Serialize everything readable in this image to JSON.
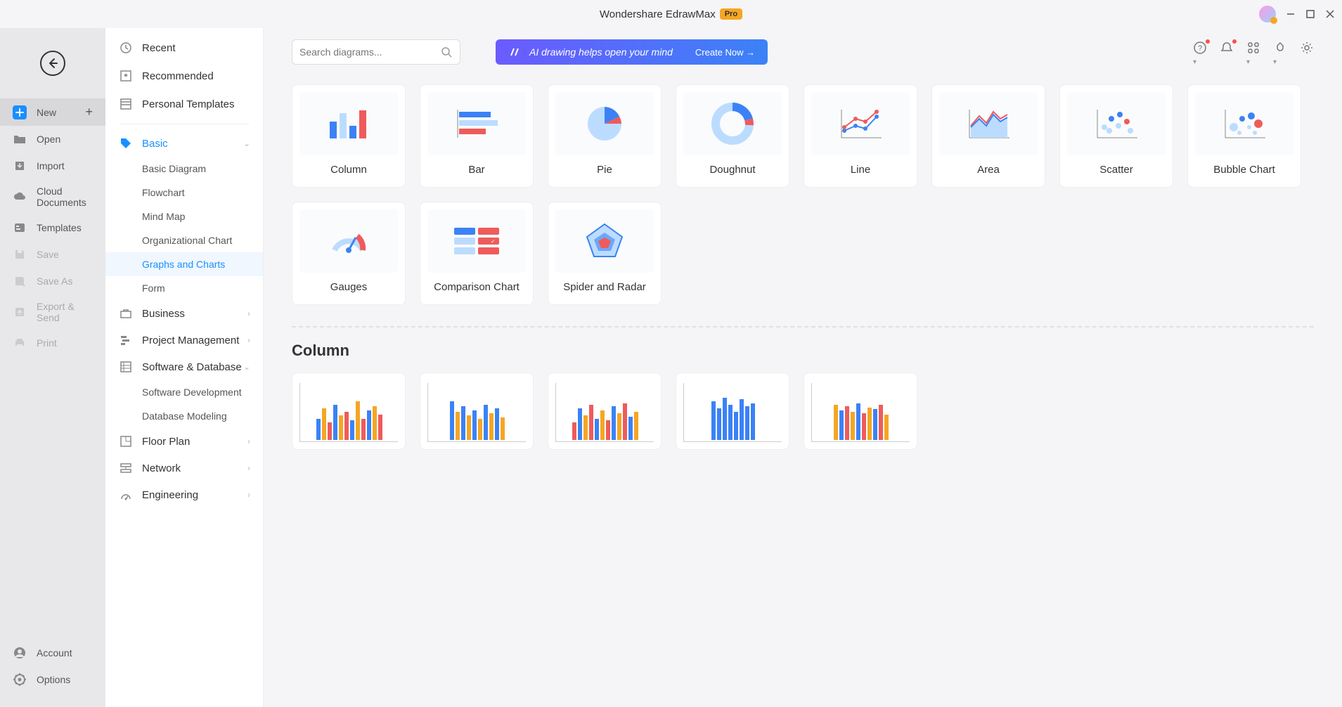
{
  "titlebar": {
    "title": "Wondershare EdrawMax",
    "badge": "Pro"
  },
  "sidebar1": {
    "items": [
      {
        "label": "New",
        "active": true,
        "plus": true
      },
      {
        "label": "Open"
      },
      {
        "label": "Import"
      },
      {
        "label": "Cloud Documents"
      },
      {
        "label": "Templates"
      },
      {
        "label": "Save",
        "disabled": true
      },
      {
        "label": "Save As",
        "disabled": true
      },
      {
        "label": "Export & Send",
        "disabled": true
      },
      {
        "label": "Print",
        "disabled": true
      }
    ],
    "bottom": [
      {
        "label": "Account"
      },
      {
        "label": "Options"
      }
    ]
  },
  "sidebar2": {
    "top": [
      {
        "label": "Recent"
      },
      {
        "label": "Recommended"
      },
      {
        "label": "Personal Templates"
      }
    ],
    "categories": [
      {
        "label": "Basic",
        "selected": true,
        "expanded": true,
        "children": [
          "Basic Diagram",
          "Flowchart",
          "Mind Map",
          "Organizational Chart",
          "Graphs and Charts",
          "Form"
        ],
        "selected_child": 4
      },
      {
        "label": "Business"
      },
      {
        "label": "Project Management"
      },
      {
        "label": "Software & Database",
        "expanded": true,
        "children": [
          "Software Development",
          "Database Modeling"
        ]
      },
      {
        "label": "Floor Plan"
      },
      {
        "label": "Network"
      },
      {
        "label": "Engineering"
      }
    ]
  },
  "search": {
    "placeholder": "Search diagrams..."
  },
  "ai_banner": {
    "text": "AI drawing helps open your mind",
    "cta": "Create Now"
  },
  "palette": {
    "blue": "#3b82f6",
    "lightblue": "#bcdcff",
    "red": "#ef5b5b",
    "bg": "#f5f5f7"
  },
  "chart_types": [
    {
      "label": "Column",
      "kind": "column"
    },
    {
      "label": "Bar",
      "kind": "bar"
    },
    {
      "label": "Pie",
      "kind": "pie"
    },
    {
      "label": "Doughnut",
      "kind": "doughnut"
    },
    {
      "label": "Line",
      "kind": "line"
    },
    {
      "label": "Area",
      "kind": "area"
    },
    {
      "label": "Scatter",
      "kind": "scatter"
    },
    {
      "label": "Bubble Chart",
      "kind": "bubble"
    },
    {
      "label": "Gauges",
      "kind": "gauge"
    },
    {
      "label": "Comparison Chart",
      "kind": "comparison"
    },
    {
      "label": "Spider and Radar",
      "kind": "radar"
    }
  ],
  "section": {
    "title": "Column"
  },
  "templates": [
    {
      "bars_colors": [
        "#3b82f6",
        "#f5a623",
        "#ef5b5b",
        "#3b82f6",
        "#f5a623",
        "#ef5b5b",
        "#3b82f6",
        "#f5a623",
        "#ef5b5b",
        "#3b82f6",
        "#f5a623",
        "#ef5b5b"
      ],
      "bars_heights": [
        30,
        45,
        25,
        50,
        35,
        40,
        28,
        55,
        30,
        42,
        48,
        36
      ]
    },
    {
      "bars_colors": [
        "#3b82f6",
        "#f5a623",
        "#3b82f6",
        "#f5a623",
        "#3b82f6",
        "#f5a623",
        "#3b82f6",
        "#f5a623",
        "#3b82f6",
        "#f5a623"
      ],
      "bars_heights": [
        55,
        40,
        48,
        35,
        42,
        30,
        50,
        38,
        45,
        32
      ]
    },
    {
      "bars_colors": [
        "#ef5b5b",
        "#3b82f6",
        "#f5a623",
        "#ef5b5b",
        "#3b82f6",
        "#f5a623",
        "#ef5b5b",
        "#3b82f6",
        "#f5a623",
        "#ef5b5b",
        "#3b82f6",
        "#f5a623"
      ],
      "bars_heights": [
        25,
        45,
        35,
        50,
        30,
        42,
        28,
        48,
        38,
        52,
        33,
        40
      ]
    },
    {
      "bars_colors": [
        "#3b82f6",
        "#3b82f6",
        "#3b82f6",
        "#3b82f6",
        "#3b82f6",
        "#3b82f6",
        "#3b82f6",
        "#3b82f6"
      ],
      "bars_heights": [
        55,
        45,
        60,
        50,
        40,
        58,
        48,
        52
      ],
      "line_color": "#2dd4bf"
    },
    {
      "bars_colors": [
        "#f5a623",
        "#3b82f6",
        "#ef5b5b",
        "#f5a623",
        "#3b82f6",
        "#ef5b5b",
        "#f5a623",
        "#3b82f6",
        "#ef5b5b",
        "#f5a623"
      ],
      "bars_heights": [
        50,
        42,
        48,
        40,
        52,
        38,
        46,
        44,
        50,
        36
      ],
      "stacked": true
    }
  ]
}
